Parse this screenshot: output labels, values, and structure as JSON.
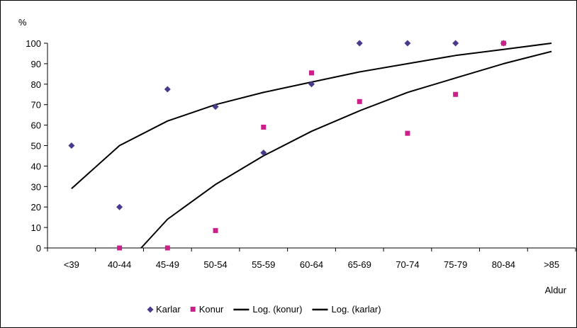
{
  "chart_data": {
    "type": "scatter",
    "ylabel": "%",
    "xlabel": "Aldur",
    "categories": [
      "<39",
      "40-44",
      "45-49",
      "50-54",
      "55-59",
      "60-64",
      "65-69",
      "70-74",
      "75-79",
      "80-84",
      ">85"
    ],
    "ylim": [
      0,
      100
    ],
    "yticks": [
      0,
      10,
      20,
      30,
      40,
      50,
      60,
      70,
      80,
      90,
      100
    ],
    "grid": false,
    "legend_position": "bottom",
    "series": [
      {
        "name": "Karlar",
        "marker": "diamond",
        "color": "#4B3A8C",
        "values": [
          50,
          20,
          77.5,
          69,
          46.5,
          80,
          100,
          100,
          100,
          100,
          null
        ]
      },
      {
        "name": "Konur",
        "marker": "square",
        "color": "#CC1F8A",
        "values": [
          null,
          0,
          0,
          8.5,
          59,
          85.5,
          71.5,
          56,
          75,
          100,
          null
        ]
      }
    ],
    "trendlines": [
      {
        "name": "Log. (konur)",
        "color": "#000000",
        "type": "logarithmic",
        "x": [
          1,
          2,
          3,
          4,
          5,
          6,
          7,
          8,
          9,
          10,
          11
        ],
        "values": [
          29,
          50,
          62,
          70,
          76,
          81,
          86,
          90,
          94,
          97,
          100
        ]
      },
      {
        "name": "Log. (karlar)",
        "color": "#000000",
        "type": "logarithmic",
        "x": [
          2.45,
          3,
          4,
          5,
          6,
          7,
          8,
          9,
          10,
          11
        ],
        "values": [
          0,
          14,
          31,
          45,
          57,
          67,
          76,
          83,
          90,
          96
        ]
      }
    ],
    "legend": [
      "Karlar",
      "Konur",
      "Log. (konur)",
      "Log. (karlar)"
    ]
  }
}
